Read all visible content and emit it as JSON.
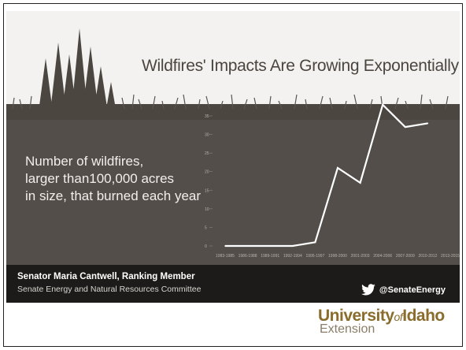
{
  "chart_data": {
    "type": "line",
    "title": "Wildfires' Impacts Are Growing Exponentially",
    "subtitle": [
      "Number of wildfires,",
      "larger than100,000 acres",
      "in size, that burned each year"
    ],
    "categories": [
      "1983-1985",
      "1986-1988",
      "1989-1991",
      "1992-1994",
      "1995-1997",
      "1998-2000",
      "2001-2003",
      "2004-2006",
      "2007-2009",
      "2010-2012",
      "2013-2015"
    ],
    "values": [
      0,
      0,
      0,
      0,
      1,
      21,
      17,
      38,
      32,
      33,
      null
    ],
    "yticks": [
      0,
      5,
      10,
      15,
      20,
      25,
      30,
      35
    ],
    "ylim": [
      0,
      35
    ],
    "line_color": "#ffffff"
  },
  "footer": {
    "senator": "Senator Maria Cantwell, Ranking Member",
    "committee": "Senate Energy and Natural Resources Committee",
    "twitter_handle": "@SenateEnergy"
  },
  "logo": {
    "university": "University",
    "of": "of",
    "idaho": "Idaho",
    "extension": "Extension"
  },
  "colors": {
    "slide_bg": "#534e49",
    "footer_bg": "#1d1b19",
    "logo_gold": "#8a6d2c"
  }
}
